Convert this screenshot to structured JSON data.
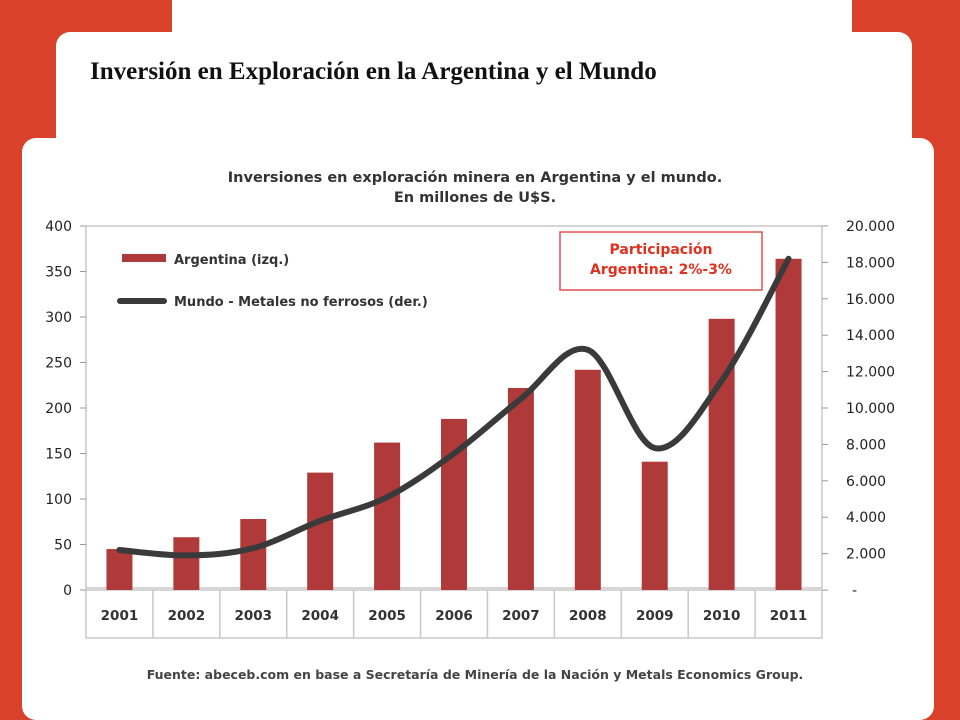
{
  "slide": {
    "title": "Inversión en Exploración en la Argentina y el Mundo",
    "source": "Fuente: abeceb.com en base a Secretaría de Minería de la Nación y Metals Economics Group."
  },
  "colors": {
    "slide_red": "#d9412b",
    "bar": "#b03a3a",
    "line": "#3a3a3a",
    "callout_border": "#e05050",
    "callout_text": "#e0301e"
  },
  "callout": {
    "line1": "Participación",
    "line2": "Argentina: 2%-3%"
  },
  "chart_data": {
    "type": "bar",
    "title": "Inversiones en exploración minera en Argentina y el mundo.",
    "subtitle": "En millones de U$S.",
    "categories": [
      "2001",
      "2002",
      "2003",
      "2004",
      "2005",
      "2006",
      "2007",
      "2008",
      "2009",
      "2010",
      "2011"
    ],
    "series": [
      {
        "name": "Argentina (izq.)",
        "type": "bar",
        "axis": "left",
        "values": [
          45,
          58,
          78,
          129,
          162,
          188,
          222,
          242,
          141,
          298,
          364
        ]
      },
      {
        "name": "Mundo - Metales no ferrosos (der.)",
        "type": "line",
        "axis": "right",
        "values": [
          2200,
          1900,
          2300,
          3800,
          5100,
          7500,
          10500,
          13200,
          7800,
          11500,
          18200
        ]
      }
    ],
    "ylim_left": [
      0,
      400
    ],
    "ylim_right": [
      0,
      20000
    ],
    "yticks_left": [
      "0",
      "50",
      "100",
      "150",
      "200",
      "250",
      "300",
      "350",
      "400"
    ],
    "yticks_right": [
      "-",
      "2.000",
      "4.000",
      "6.000",
      "8.000",
      "10.000",
      "12.000",
      "14.000",
      "16.000",
      "18.000",
      "20.000"
    ],
    "grid": false,
    "legend_position": "top-left"
  }
}
